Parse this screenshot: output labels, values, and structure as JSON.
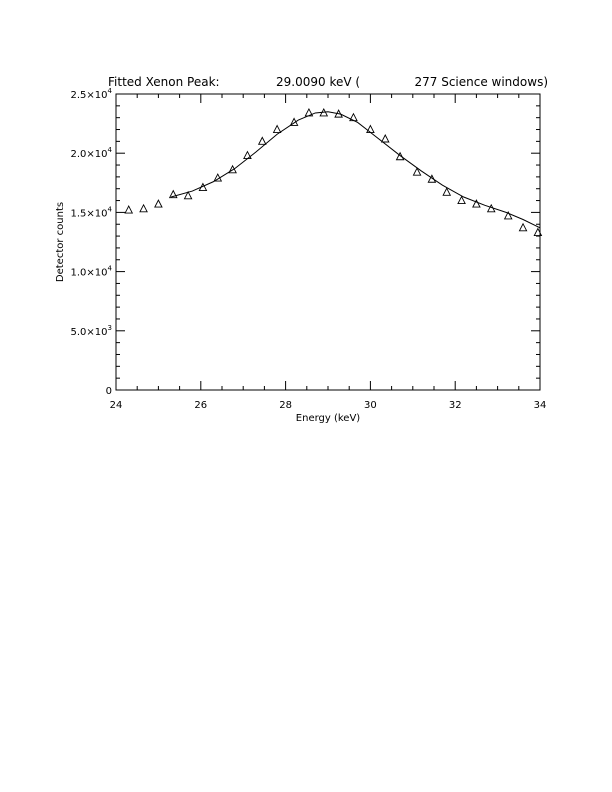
{
  "chart_data": {
    "type": "scatter",
    "title": {
      "label": "Fitted Xenon Peak:",
      "energy": "29.0090 keV (",
      "windows": "277 Science windows)"
    },
    "xlabel": "Energy (keV)",
    "ylabel": "Detector counts",
    "xlim": [
      24,
      34
    ],
    "ylim": [
      0,
      25000
    ],
    "x_ticks": [
      {
        "value": 24,
        "label": "24"
      },
      {
        "value": 26,
        "label": "26"
      },
      {
        "value": 28,
        "label": "28"
      },
      {
        "value": 30,
        "label": "30"
      },
      {
        "value": 32,
        "label": "32"
      },
      {
        "value": 34,
        "label": "34"
      }
    ],
    "y_ticks": [
      {
        "value": 0,
        "mant": "0",
        "exp": ""
      },
      {
        "value": 5000,
        "mant": "5.0×10",
        "exp": "3"
      },
      {
        "value": 10000,
        "mant": "1.0×10",
        "exp": "4"
      },
      {
        "value": 15000,
        "mant": "1.5×10",
        "exp": "4"
      },
      {
        "value": 20000,
        "mant": "2.0×10",
        "exp": "4"
      },
      {
        "value": 25000,
        "mant": "2.5×10",
        "exp": "4"
      }
    ],
    "series": [
      {
        "marker": "triangle",
        "x": [
          24.3,
          24.65,
          25.0,
          25.35,
          25.7,
          26.05,
          26.4,
          26.75,
          27.1,
          27.45,
          27.8,
          28.2,
          28.55,
          28.9,
          29.25,
          29.6,
          30.0,
          30.35,
          30.7,
          31.1,
          31.45,
          31.8,
          32.15,
          32.5,
          32.85,
          33.25,
          33.6,
          33.95
        ],
        "y": [
          15200,
          15300,
          15700,
          16500,
          16400,
          17100,
          17900,
          18600,
          19800,
          21000,
          22000,
          22600,
          23400,
          23400,
          23300,
          23000,
          22000,
          21200,
          19700,
          18400,
          17800,
          16700,
          16000,
          15700,
          15300,
          14700,
          13700,
          13300
        ]
      },
      {
        "line": "fit",
        "x": [
          25.3,
          25.8,
          26.3,
          26.8,
          27.3,
          27.8,
          28.3,
          28.7,
          29.0,
          29.3,
          29.7,
          30.2,
          30.7,
          31.2,
          31.7,
          32.2,
          32.7,
          33.2,
          33.6,
          34.0
        ],
        "y": [
          16300,
          16800,
          17600,
          18700,
          20100,
          21600,
          22800,
          23400,
          23500,
          23300,
          22600,
          21200,
          19800,
          18500,
          17300,
          16300,
          15600,
          15000,
          14400,
          13700
        ]
      }
    ],
    "grid": false,
    "legend": "none"
  }
}
